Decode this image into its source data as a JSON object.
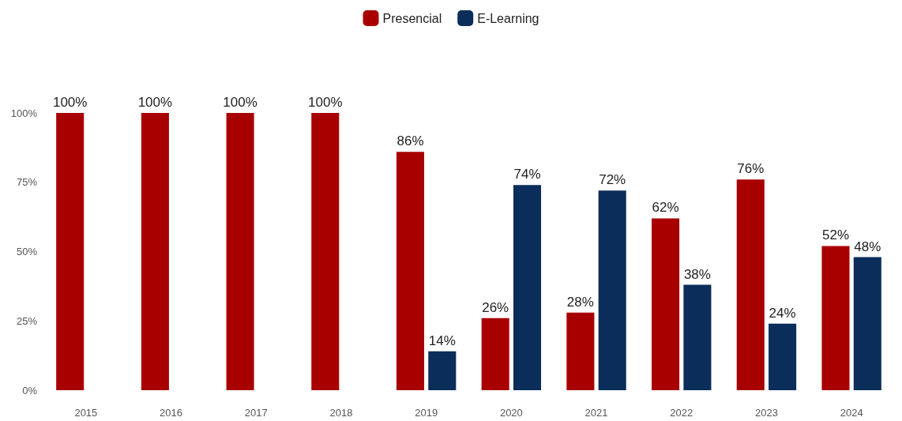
{
  "chart_data": {
    "type": "bar",
    "categories": [
      "2015",
      "2016",
      "2017",
      "2018",
      "2019",
      "2020",
      "2021",
      "2022",
      "2023",
      "2024"
    ],
    "series": [
      {
        "name": "Presencial",
        "color": "#a80000",
        "values": [
          100,
          100,
          100,
          100,
          86,
          26,
          28,
          62,
          76,
          52
        ],
        "value_labels": [
          "100%",
          "100%",
          "100%",
          "100%",
          "86%",
          "26%",
          "28%",
          "62%",
          "76%",
          "52%"
        ]
      },
      {
        "name": "E-Learning",
        "color": "#0b2d5a",
        "values": [
          null,
          null,
          null,
          null,
          14,
          74,
          72,
          38,
          24,
          48
        ],
        "value_labels": [
          null,
          null,
          null,
          null,
          "14%",
          "74%",
          "72%",
          "38%",
          "24%",
          "48%"
        ]
      }
    ],
    "ylim": [
      0,
      100
    ],
    "yticks": [
      {
        "value": 0,
        "label": "0%"
      },
      {
        "value": 25,
        "label": "25%"
      },
      {
        "value": 50,
        "label": "50%"
      },
      {
        "value": 75,
        "label": "75%"
      },
      {
        "value": 100,
        "label": "100%"
      }
    ],
    "grid": false,
    "legend": "top"
  }
}
